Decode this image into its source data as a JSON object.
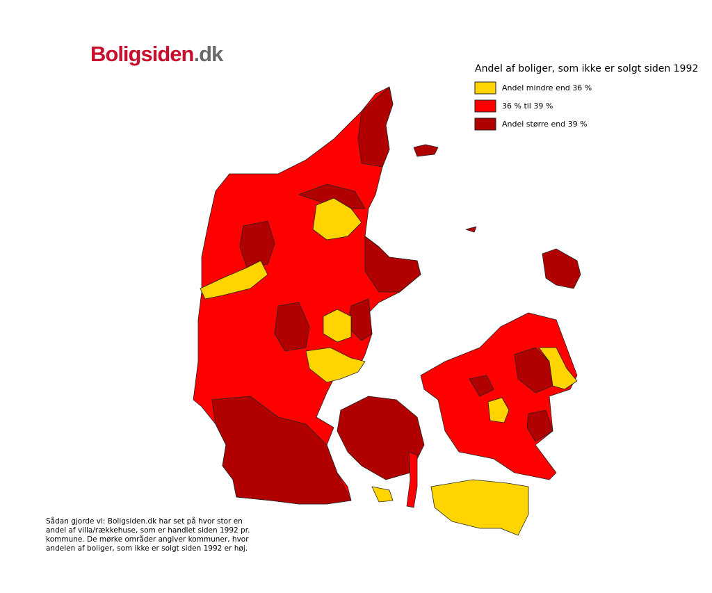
{
  "logo": {
    "main": "Boligsiden",
    "suffix": ".dk"
  },
  "legend": {
    "title": "Andel af boliger, som ikke er solgt siden 1992",
    "items": [
      {
        "label": "Andel mindre end 36 %",
        "color": "#ffd400"
      },
      {
        "label": "36 % til 39 %",
        "color": "#ff0000"
      },
      {
        "label": "Andel større end 39 %",
        "color": "#b00000"
      }
    ]
  },
  "note": [
    "Sådan gjorde vi: Boligsiden.dk har set på hvor stor en",
    "andel af villa/rækkehuse, som er handlet siden 1992 pr.",
    "kommune. De mørke områder angiver kommuner, hvor",
    "andelen af boliger, som ikke er solgt siden 1992 er høj."
  ]
}
